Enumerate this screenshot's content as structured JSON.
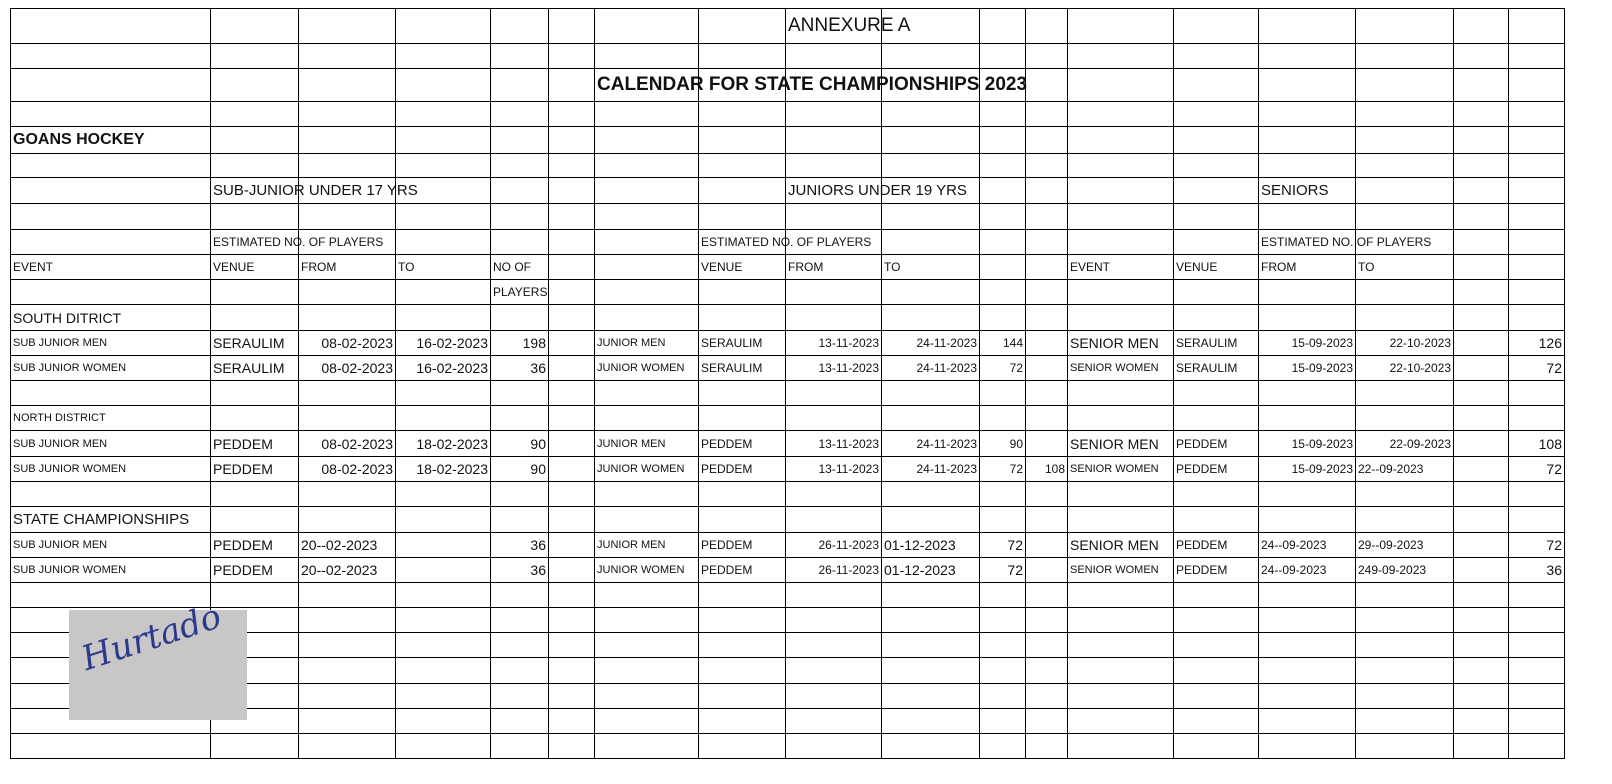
{
  "sheet": {
    "rows": [
      [
        "",
        "",
        "",
        "",
        "",
        "",
        "",
        "",
        "ANNEXURE  A",
        "",
        "",
        "",
        "",
        "",
        "",
        "",
        "",
        ""
      ],
      [
        "",
        "",
        "",
        "",
        "",
        "",
        "",
        "",
        "",
        "",
        "",
        "",
        "",
        "",
        "",
        "",
        "",
        ""
      ],
      [
        "",
        "",
        "",
        "",
        "",
        "",
        "CALENDAR FOR STATE CHAMPIONSHIPS  2023",
        "",
        "",
        "",
        "",
        "",
        "",
        "",
        "",
        "",
        "",
        ""
      ],
      [
        "",
        "",
        "",
        "",
        "",
        "",
        "",
        "",
        "",
        "",
        "",
        "",
        "",
        "",
        "",
        "",
        "",
        ""
      ],
      [
        "GOANS HOCKEY",
        "",
        "",
        "",
        "",
        "",
        "",
        "",
        "",
        "",
        "",
        "",
        "",
        "",
        "",
        "",
        "",
        ""
      ],
      [
        "",
        "",
        "",
        "",
        "",
        "",
        "",
        "",
        "",
        "",
        "",
        "",
        "",
        "",
        "",
        "",
        "",
        ""
      ],
      [
        "",
        "SUB-JUNIOR UNDER 17 YRS",
        "",
        "",
        "",
        "",
        "",
        "",
        "JUNIORS UNDER 19 YRS",
        "",
        "",
        "",
        "",
        "",
        "SENIORS",
        "",
        "",
        ""
      ],
      [
        "",
        "",
        "",
        "",
        "",
        "",
        "",
        "",
        "",
        "",
        "",
        "",
        "",
        "",
        "",
        "",
        "",
        ""
      ],
      [
        "",
        "ESTIMATED  NO. OF PLAYERS",
        "",
        "",
        "",
        "",
        "",
        "ESTIMATED  NO. OF PLAYERS",
        "",
        "",
        "",
        "",
        "",
        "",
        "ESTIMATED  NO. OF PLAYERS",
        "",
        "",
        ""
      ],
      [
        "EVENT",
        "VENUE",
        "FROM",
        "TO",
        "NO OF",
        "",
        "",
        "VENUE",
        "FROM",
        "TO",
        "",
        "",
        "EVENT",
        "VENUE",
        "FROM",
        "TO",
        "",
        ""
      ],
      [
        "",
        "",
        "",
        "",
        "PLAYERS",
        "",
        "",
        "",
        "",
        "",
        "",
        "",
        "",
        "",
        "",
        "",
        "",
        ""
      ],
      [
        "SOUTH DITRICT",
        "",
        "",
        "",
        "",
        "",
        "",
        "",
        "",
        "",
        "",
        "",
        "",
        "",
        "",
        "",
        "",
        ""
      ],
      [
        "SUB JUNIOR MEN",
        "SERAULIM",
        "08-02-2023",
        "16-02-2023",
        "198",
        "",
        "JUNIOR MEN",
        "SERAULIM",
        "13-11-2023",
        "24-11-2023",
        "144",
        "",
        "SENIOR MEN",
        "SERAULIM",
        "15-09-2023",
        "22-10-2023",
        "",
        "126"
      ],
      [
        "SUB JUNIOR WOMEN",
        "SERAULIM",
        "08-02-2023",
        "16-02-2023",
        "36",
        "",
        "JUNIOR WOMEN",
        "SERAULIM",
        "13-11-2023",
        "24-11-2023",
        "72",
        "",
        "SENIOR WOMEN",
        "SERAULIM",
        "15-09-2023",
        "22-10-2023",
        "",
        "72"
      ],
      [
        "",
        "",
        "",
        "",
        "",
        "",
        "",
        "",
        "",
        "",
        "",
        "",
        "",
        "",
        "",
        "",
        "",
        ""
      ],
      [
        "NORTH DISTRICT",
        "",
        "",
        "",
        "",
        "",
        "",
        "",
        "",
        "",
        "",
        "",
        "",
        "",
        "",
        "",
        "",
        ""
      ],
      [
        "SUB JUNIOR MEN",
        "PEDDEM",
        "08-02-2023",
        "18-02-2023",
        "90",
        "",
        "JUNIOR MEN",
        "PEDDEM",
        "13-11-2023",
        "24-11-2023",
        "90",
        "",
        "SENIOR MEN",
        "PEDDEM",
        "15-09-2023",
        "22-09-2023",
        "",
        "108"
      ],
      [
        "SUB JUNIOR WOMEN",
        "PEDDEM",
        "08-02-2023",
        "18-02-2023",
        "90",
        "",
        "JUNIOR WOMEN",
        "PEDDEM",
        "13-11-2023",
        "24-11-2023",
        "72",
        "108",
        "SENIOR WOMEN",
        "PEDDEM",
        "15-09-2023",
        "22--09-2023",
        "",
        "72"
      ],
      [
        "",
        "",
        "",
        "",
        "",
        "",
        "",
        "",
        "",
        "",
        "",
        "",
        "",
        "",
        "",
        "",
        "",
        ""
      ],
      [
        "STATE CHAMPIONSHIPS",
        "",
        "",
        "",
        "",
        "",
        "",
        "",
        "",
        "",
        "",
        "",
        "",
        "",
        "",
        "",
        "",
        ""
      ],
      [
        "SUB JUNIOR MEN",
        "PEDDEM",
        "20--02-2023",
        "",
        "36",
        "",
        "JUNIOR MEN",
        "PEDDEM",
        "26-11-2023",
        "01-12-2023",
        "72",
        "",
        "SENIOR MEN",
        "PEDDEM",
        "24--09-2023",
        "29--09-2023",
        "",
        "72"
      ],
      [
        "SUB JUNIOR WOMEN",
        "PEDDEM",
        "20--02-2023",
        "",
        "36",
        "",
        "JUNIOR WOMEN",
        "PEDDEM",
        "26-11-2023",
        "01-12-2023",
        "72",
        "",
        "SENIOR WOMEN",
        "PEDDEM",
        "24--09-2023",
        "249-09-2023",
        "",
        "36"
      ],
      [
        "",
        "",
        "",
        "",
        "",
        "",
        "",
        "",
        "",
        "",
        "",
        "",
        "",
        "",
        "",
        "",
        "",
        ""
      ],
      [
        "",
        "",
        "",
        "",
        "",
        "",
        "",
        "",
        "",
        "",
        "",
        "",
        "",
        "",
        "",
        "",
        "",
        ""
      ],
      [
        "",
        "",
        "",
        "",
        "",
        "",
        "",
        "",
        "",
        "",
        "",
        "",
        "",
        "",
        "",
        "",
        "",
        ""
      ],
      [
        "",
        "",
        "",
        "",
        "",
        "",
        "",
        "",
        "",
        "",
        "",
        "",
        "",
        "",
        "",
        "",
        "",
        ""
      ],
      [
        "",
        "",
        "",
        "",
        "",
        "",
        "",
        "",
        "",
        "",
        "",
        "",
        "",
        "",
        "",
        "",
        "",
        ""
      ],
      [
        "",
        "",
        "",
        "",
        "",
        "",
        "",
        "",
        "",
        "",
        "",
        "",
        "",
        "",
        "",
        "",
        "",
        ""
      ],
      [
        "",
        "",
        "",
        "",
        "",
        "",
        "",
        "",
        "",
        "",
        "",
        "",
        "",
        "",
        "",
        "",
        "",
        ""
      ]
    ]
  },
  "signature": {
    "text": "Hurtado",
    "ink_color": "#2b3a8c"
  }
}
